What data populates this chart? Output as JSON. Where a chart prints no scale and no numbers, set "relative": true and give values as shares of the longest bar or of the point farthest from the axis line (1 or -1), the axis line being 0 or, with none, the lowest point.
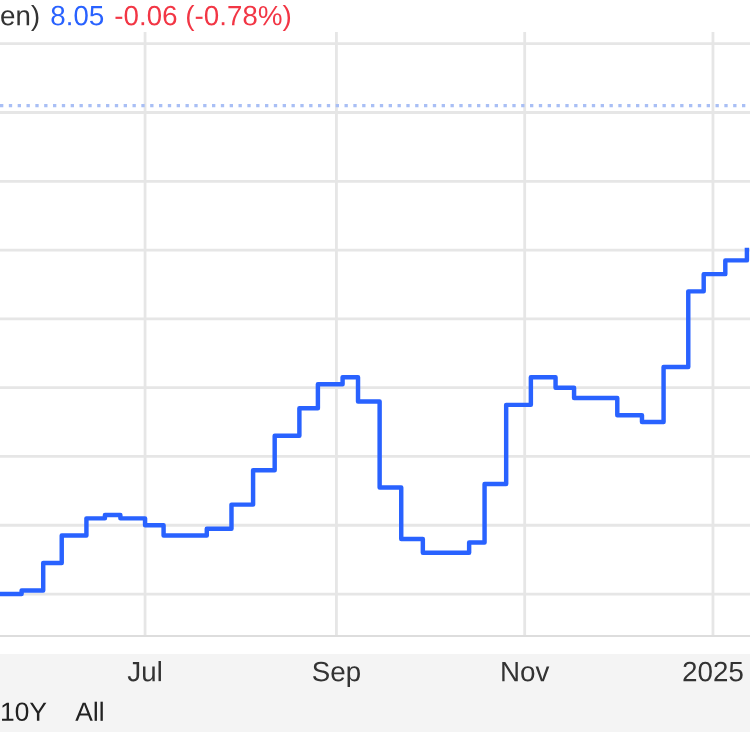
{
  "chart_data": {
    "type": "step",
    "relative": true,
    "grid": true,
    "marker": "none",
    "line_style": "solid",
    "annotations": [
      "en)",
      "8.05",
      "-0.06 (-0.78%)",
      "10Y",
      "All"
    ],
    "xlim": [
      "2024-05-15",
      "2025-01-13"
    ],
    "xticks": [
      {
        "value": "2024-07-01",
        "label": "Jul"
      },
      {
        "value": "2024-09-01",
        "label": "Sep"
      },
      {
        "value": "2024-11-01",
        "label": "Nov"
      },
      {
        "value": "2025-01-01",
        "label": "2025"
      }
    ],
    "ref_lines": [
      {
        "axis": "y",
        "value": 1.42,
        "label": null,
        "color": "#a9bff5",
        "line_style": "dotted"
      }
    ],
    "series": [
      {
        "color": "#2962ff",
        "x": [
          "2024-05-15",
          "2024-05-22",
          "2024-05-29",
          "2024-06-04",
          "2024-06-12",
          "2024-06-18",
          "2024-06-23",
          "2024-07-01",
          "2024-07-07",
          "2024-07-21",
          "2024-07-29",
          "2024-08-05",
          "2024-08-12",
          "2024-08-20",
          "2024-08-26",
          "2024-09-03",
          "2024-09-08",
          "2024-09-15",
          "2024-09-22",
          "2024-09-29",
          "2024-10-14",
          "2024-10-19",
          "2024-10-26",
          "2024-11-03",
          "2024-11-11",
          "2024-11-17",
          "2024-12-01",
          "2024-12-09",
          "2024-12-16",
          "2024-12-24",
          "2024-12-29",
          "2025-01-05",
          "2025-01-12"
        ],
        "values": [
          0,
          0.01,
          0.09,
          0.17,
          0.22,
          0.23,
          0.22,
          0.2,
          0.17,
          0.19,
          0.26,
          0.36,
          0.46,
          0.54,
          0.61,
          0.63,
          0.56,
          0.31,
          0.16,
          0.12,
          0.15,
          0.32,
          0.55,
          0.63,
          0.6,
          0.57,
          0.52,
          0.5,
          0.66,
          0.88,
          0.93,
          0.97,
          1
        ]
      }
    ]
  }
}
